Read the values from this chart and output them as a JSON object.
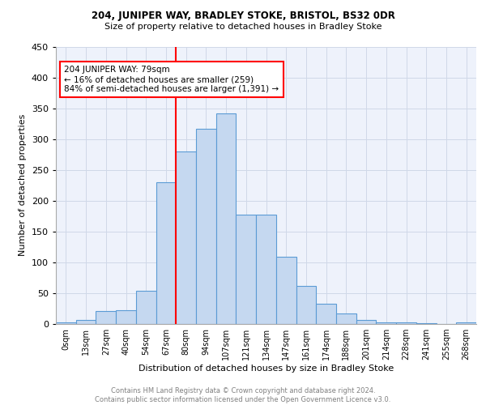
{
  "title1": "204, JUNIPER WAY, BRADLEY STOKE, BRISTOL, BS32 0DR",
  "title2": "Size of property relative to detached houses in Bradley Stoke",
  "xlabel": "Distribution of detached houses by size in Bradley Stoke",
  "ylabel": "Number of detached properties",
  "bar_labels": [
    "0sqm",
    "13sqm",
    "27sqm",
    "40sqm",
    "54sqm",
    "67sqm",
    "80sqm",
    "94sqm",
    "107sqm",
    "121sqm",
    "134sqm",
    "147sqm",
    "161sqm",
    "174sqm",
    "188sqm",
    "201sqm",
    "214sqm",
    "228sqm",
    "241sqm",
    "255sqm",
    "268sqm"
  ],
  "bar_values": [
    2,
    6,
    21,
    22,
    54,
    230,
    280,
    317,
    342,
    178,
    178,
    109,
    62,
    33,
    17,
    7,
    2,
    2,
    1,
    0,
    2
  ],
  "bar_color": "#c5d8f0",
  "bar_edge_color": "#5b9bd5",
  "vline_color": "red",
  "annotation_text": "204 JUNIPER WAY: 79sqm\n← 16% of detached houses are smaller (259)\n84% of semi-detached houses are larger (1,391) →",
  "annotation_box_color": "white",
  "annotation_box_edge_color": "red",
  "ylim": [
    0,
    450
  ],
  "yticks": [
    0,
    50,
    100,
    150,
    200,
    250,
    300,
    350,
    400,
    450
  ],
  "footnote": "Contains HM Land Registry data © Crown copyright and database right 2024.\nContains public sector information licensed under the Open Government Licence v3.0.",
  "footnote_color": "#808080",
  "background_color": "#eef2fb",
  "grid_color": "#d0d8e8"
}
